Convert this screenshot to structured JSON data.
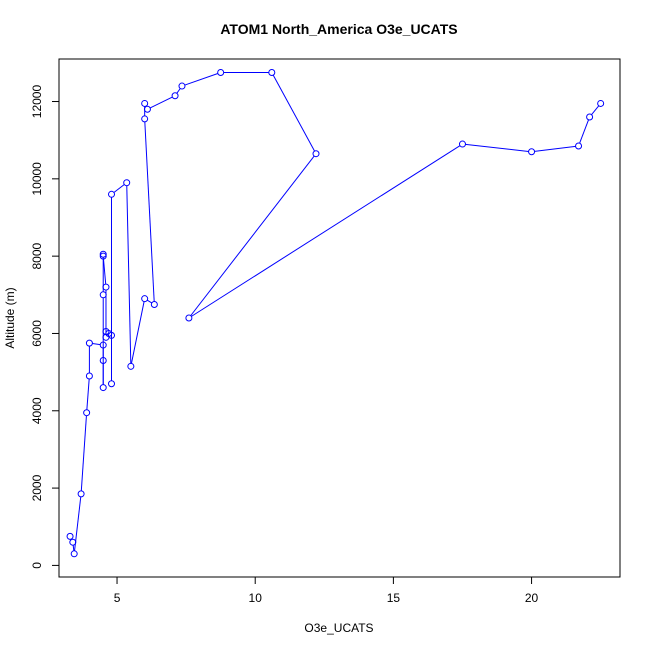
{
  "chart_data": {
    "type": "scatter",
    "title": "ATOM1 North_America O3e_UCATS",
    "xlabel": "O3e_UCATS",
    "ylabel": "Altitude (m)",
    "xlim": [
      2.9,
      23.2
    ],
    "ylim": [
      -300,
      13100
    ],
    "x_ticks": [
      5,
      10,
      15,
      20
    ],
    "y_ticks": [
      0,
      2000,
      4000,
      6000,
      8000,
      10000,
      12000
    ],
    "grid": false,
    "legend": "none",
    "connected": true,
    "color": "#0000ff",
    "series": [
      {
        "points": [
          [
            3.3,
            750
          ],
          [
            3.4,
            600
          ],
          [
            3.45,
            300
          ],
          [
            3.7,
            1850
          ],
          [
            3.9,
            3950
          ],
          [
            4.0,
            4900
          ],
          [
            4.0,
            5750
          ],
          [
            4.5,
            5700
          ],
          [
            4.5,
            5300
          ],
          [
            4.5,
            4600
          ],
          [
            4.5,
            7000
          ],
          [
            4.5,
            8050
          ],
          [
            4.5,
            8000
          ],
          [
            4.6,
            7200
          ],
          [
            4.6,
            5900
          ],
          [
            4.6,
            6050
          ],
          [
            4.7,
            6000
          ],
          [
            4.8,
            5950
          ],
          [
            4.8,
            4700
          ],
          [
            4.8,
            9600
          ],
          [
            5.35,
            9900
          ],
          [
            5.5,
            5150
          ],
          [
            6.0,
            6900
          ],
          [
            6.35,
            6750
          ],
          [
            6.0,
            11550
          ],
          [
            6.0,
            11950
          ],
          [
            6.1,
            11800
          ],
          [
            7.1,
            12150
          ],
          [
            7.35,
            12400
          ],
          [
            8.75,
            12750
          ],
          [
            10.6,
            12750
          ],
          [
            12.2,
            10650
          ],
          [
            7.6,
            6400
          ],
          [
            17.5,
            10900
          ],
          [
            20.0,
            10700
          ],
          [
            21.7,
            10850
          ],
          [
            22.1,
            11600
          ],
          [
            22.5,
            11950
          ]
        ]
      }
    ]
  }
}
